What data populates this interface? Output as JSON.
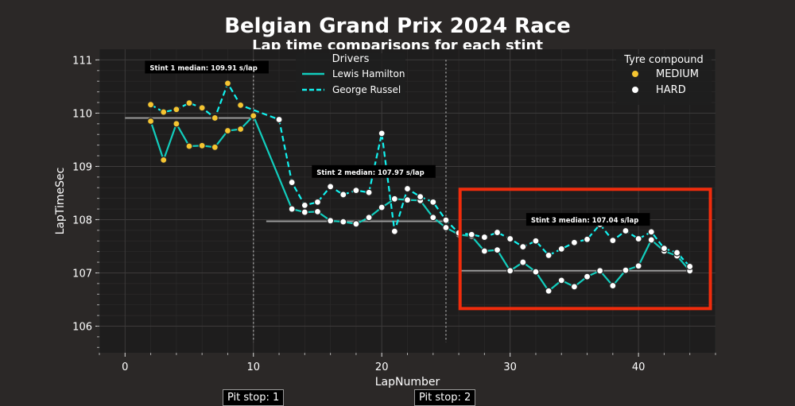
{
  "chart_data": {
    "type": "line",
    "title": "Belgian Grand Prix 2024 Race",
    "subtitle": "Lap time comparisons for each stint",
    "xlabel": "LapNumber",
    "ylabel": "LapTimeSec",
    "xlim": [
      -2,
      46
    ],
    "ylim": [
      105.5,
      111.2
    ],
    "xticks": [
      0,
      10,
      20,
      30,
      40
    ],
    "yticks": [
      106,
      107,
      108,
      109,
      110,
      111
    ],
    "grid": true,
    "series": [
      {
        "name": "Lewis Hamilton",
        "color": "#12cdbd",
        "dash": "solid",
        "x": [
          2,
          3,
          4,
          5,
          6,
          7,
          8,
          9,
          10,
          13,
          14,
          15,
          16,
          17,
          18,
          19,
          20,
          21,
          22,
          23,
          24,
          25,
          26,
          27,
          28,
          29,
          30,
          31,
          32,
          33,
          34,
          35,
          36,
          37,
          38,
          39,
          40,
          41,
          42,
          43,
          44
        ],
        "y": [
          109.85,
          109.12,
          109.8,
          109.38,
          109.39,
          109.36,
          109.67,
          109.7,
          109.95,
          108.2,
          108.14,
          108.15,
          107.98,
          107.96,
          107.92,
          108.04,
          108.23,
          108.39,
          108.37,
          108.36,
          108.04,
          107.85,
          107.72,
          107.69,
          107.41,
          107.43,
          107.04,
          107.2,
          107.02,
          106.66,
          106.86,
          106.74,
          106.93,
          107.04,
          106.76,
          107.05,
          107.13,
          107.62,
          107.41,
          107.32,
          107.04
        ],
        "compounds": [
          "MEDIUM",
          "MEDIUM",
          "MEDIUM",
          "MEDIUM",
          "MEDIUM",
          "MEDIUM",
          "MEDIUM",
          "MEDIUM",
          "MEDIUM",
          "HARD",
          "HARD",
          "HARD",
          "HARD",
          "HARD",
          "HARD",
          "HARD",
          "HARD",
          "HARD",
          "HARD",
          "HARD",
          "HARD",
          "HARD",
          "HARD",
          "HARD",
          "HARD",
          "HARD",
          "HARD",
          "HARD",
          "HARD",
          "HARD",
          "HARD",
          "HARD",
          "HARD",
          "HARD",
          "HARD",
          "HARD",
          "HARD",
          "HARD",
          "HARD",
          "HARD",
          "HARD"
        ]
      },
      {
        "name": "George Russel",
        "color": "#12f3f0",
        "dash": "dashed",
        "x": [
          2,
          3,
          4,
          5,
          6,
          7,
          8,
          9,
          12,
          13,
          14,
          15,
          16,
          17,
          18,
          19,
          20,
          21,
          22,
          23,
          24,
          25,
          26,
          27,
          28,
          29,
          30,
          31,
          32,
          33,
          34,
          35,
          36,
          37,
          38,
          39,
          40,
          41,
          42,
          43,
          44
        ],
        "y": [
          110.16,
          110.02,
          110.07,
          110.19,
          110.1,
          109.91,
          110.56,
          110.15,
          109.88,
          108.7,
          108.27,
          108.33,
          108.62,
          108.47,
          108.55,
          108.51,
          109.62,
          107.78,
          108.58,
          108.43,
          108.33,
          107.99,
          107.75,
          107.72,
          107.67,
          107.76,
          107.64,
          107.49,
          107.6,
          107.33,
          107.45,
          107.57,
          107.63,
          107.91,
          107.61,
          107.79,
          107.64,
          107.77,
          107.46,
          107.38,
          107.12
        ],
        "compounds": [
          "MEDIUM",
          "MEDIUM",
          "MEDIUM",
          "MEDIUM",
          "MEDIUM",
          "MEDIUM",
          "MEDIUM",
          "MEDIUM",
          "HARD",
          "HARD",
          "HARD",
          "HARD",
          "HARD",
          "HARD",
          "HARD",
          "HARD",
          "HARD",
          "HARD",
          "HARD",
          "HARD",
          "HARD",
          "HARD",
          "HARD",
          "HARD",
          "HARD",
          "HARD",
          "HARD",
          "HARD",
          "HARD",
          "HARD",
          "HARD",
          "HARD",
          "HARD",
          "HARD",
          "HARD",
          "HARD",
          "HARD",
          "HARD",
          "HARD",
          "HARD",
          "HARD"
        ]
      }
    ],
    "compound_colors": {
      "MEDIUM": "#f5c531",
      "HARD": "#ffffff"
    },
    "stint_medians": [
      {
        "label": "Stint 1 median: 109.91 s/lap",
        "value": 109.91,
        "from": 0,
        "to": 10,
        "label_at": [
          1.8,
          110.85
        ]
      },
      {
        "label": "Stint 2 median: 107.97 s/lap",
        "value": 107.97,
        "from": 11,
        "to": 25,
        "label_at": [
          14.8,
          108.89
        ]
      },
      {
        "label": "Stint 3 median: 107.04 s/lap",
        "value": 107.04,
        "from": 26,
        "to": 44,
        "label_at": [
          31.5,
          107.99
        ]
      }
    ],
    "pit_stops": [
      {
        "lap": 10,
        "label": "Pit stop: 1"
      },
      {
        "lap": 25,
        "label": "Pit stop: 2"
      }
    ],
    "highlight_box": {
      "x": [
        26.1,
        45.6
      ],
      "y": [
        106.33,
        108.57
      ],
      "color": "#f02c0c"
    },
    "legend_drivers": {
      "title": "Drivers",
      "placement": "top-center"
    },
    "legend_compound": {
      "title": "Tyre compound",
      "placement": "top-right",
      "entries": [
        "MEDIUM",
        "HARD"
      ]
    }
  }
}
